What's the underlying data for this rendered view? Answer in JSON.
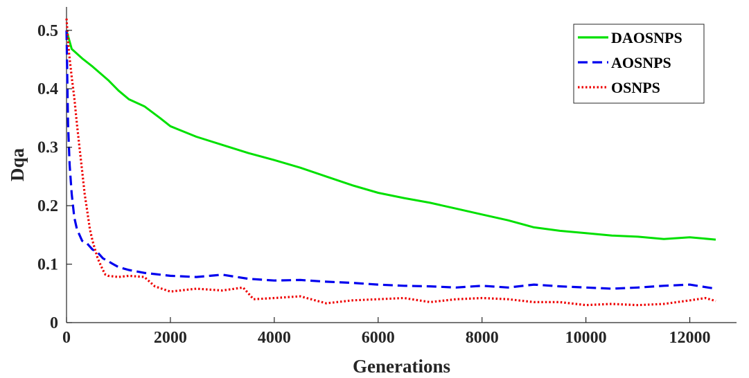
{
  "chart_data": {
    "type": "line",
    "xlabel": "Generations",
    "ylabel": "Dqa",
    "xlim": [
      0,
      12900
    ],
    "ylim": [
      0,
      0.54
    ],
    "xticks": [
      0,
      2000,
      4000,
      6000,
      8000,
      10000,
      12000
    ],
    "xtick_labels": [
      "0",
      "2000",
      "4000",
      "6000",
      "8000",
      "10000",
      "12000"
    ],
    "yticks": [
      0,
      0.1,
      0.2,
      0.3,
      0.4,
      0.5
    ],
    "ytick_labels": [
      "0",
      "0.1",
      "0.2",
      "0.3",
      "0.4",
      "0.5"
    ],
    "grid": false,
    "legend_position": "top-right",
    "series": [
      {
        "name": "DAOSNPS",
        "color": "#00e000",
        "line_style": "solid",
        "x": [
          0,
          100,
          300,
          500,
          800,
          1000,
          1200,
          1500,
          1800,
          2000,
          2500,
          3000,
          3500,
          4000,
          4500,
          5000,
          5500,
          6000,
          6500,
          7000,
          7500,
          8000,
          8500,
          9000,
          9500,
          10000,
          10500,
          11000,
          11500,
          12000,
          12500
        ],
        "y": [
          0.5,
          0.468,
          0.452,
          0.438,
          0.415,
          0.397,
          0.382,
          0.37,
          0.35,
          0.336,
          0.318,
          0.304,
          0.29,
          0.278,
          0.265,
          0.25,
          0.235,
          0.222,
          0.213,
          0.205,
          0.195,
          0.185,
          0.175,
          0.163,
          0.157,
          0.153,
          0.149,
          0.147,
          0.143,
          0.146,
          0.142
        ]
      },
      {
        "name": "AOSNPS",
        "color": "#0000ee",
        "line_style": "dashed",
        "x": [
          0,
          30,
          60,
          100,
          150,
          200,
          300,
          400,
          500,
          600,
          700,
          800,
          900,
          1000,
          1200,
          1500,
          2000,
          2500,
          3000,
          3500,
          4000,
          4500,
          5000,
          5500,
          6000,
          6500,
          7000,
          7500,
          8000,
          8500,
          9000,
          9500,
          10000,
          10500,
          11000,
          11500,
          12000,
          12500
        ],
        "y": [
          0.5,
          0.34,
          0.27,
          0.22,
          0.18,
          0.16,
          0.14,
          0.135,
          0.125,
          0.12,
          0.11,
          0.105,
          0.1,
          0.095,
          0.09,
          0.085,
          0.08,
          0.078,
          0.082,
          0.075,
          0.072,
          0.073,
          0.07,
          0.068,
          0.065,
          0.063,
          0.062,
          0.06,
          0.063,
          0.06,
          0.065,
          0.062,
          0.06,
          0.058,
          0.06,
          0.063,
          0.065,
          0.058
        ]
      },
      {
        "name": "OSNPS",
        "color": "#ee0000",
        "line_style": "dotted",
        "x": [
          0,
          50,
          100,
          150,
          200,
          250,
          300,
          350,
          400,
          450,
          500,
          550,
          600,
          650,
          700,
          750,
          800,
          1000,
          1200,
          1500,
          1700,
          2000,
          2500,
          3000,
          3400,
          3600,
          4000,
          4500,
          5000,
          5500,
          6000,
          6500,
          7000,
          7500,
          8000,
          8500,
          9000,
          9500,
          10000,
          10500,
          11000,
          11500,
          12000,
          12300,
          12500
        ],
        "y": [
          0.52,
          0.46,
          0.42,
          0.385,
          0.34,
          0.3,
          0.26,
          0.22,
          0.19,
          0.16,
          0.14,
          0.125,
          0.11,
          0.1,
          0.09,
          0.082,
          0.08,
          0.078,
          0.08,
          0.078,
          0.062,
          0.053,
          0.058,
          0.055,
          0.06,
          0.04,
          0.042,
          0.045,
          0.033,
          0.038,
          0.04,
          0.042,
          0.035,
          0.04,
          0.042,
          0.04,
          0.035,
          0.035,
          0.03,
          0.032,
          0.03,
          0.032,
          0.038,
          0.042,
          0.037
        ]
      }
    ]
  }
}
